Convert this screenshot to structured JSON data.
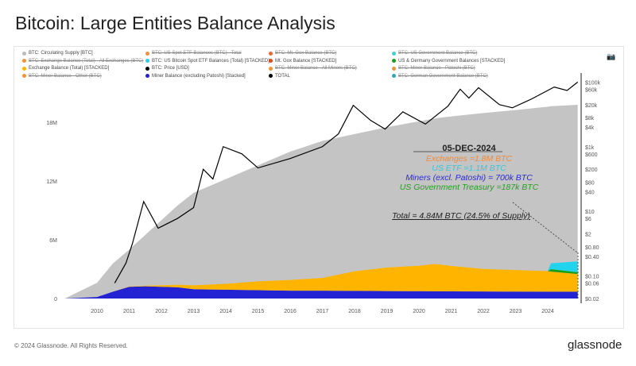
{
  "title": "Bitcoin: Large Entities Balance Analysis",
  "footer": "© 2024 Glassnode. All Rights Reserved.",
  "brand": "glassnode",
  "camera_icon": "camera-icon",
  "legend": [
    {
      "label": "BTC: Circulating Supply [BTC]",
      "color": "#bbbbbb",
      "off": false
    },
    {
      "label": "BTC: US Spot ETF Balances (BTC) - Total",
      "color": "#f0923a",
      "off": true
    },
    {
      "label": "BTC: Mt. Gox Balance (BTC)",
      "color": "#e8663a",
      "off": true
    },
    {
      "label": "BTC: US Government Balance (BTC)",
      "color": "#3ad2d2",
      "off": true
    },
    {
      "label": "BTC: Exchange Balance (Total) - All Exchanges (BTC)",
      "color": "#f0923a",
      "off": true
    },
    {
      "label": "BTC: US Bitcoin Spot ETF Balances (Total) [STACKED]",
      "color": "#22d3ee",
      "off": false
    },
    {
      "label": "Mt. Gox Balance [STACKED]",
      "color": "#e34a1a",
      "off": false
    },
    {
      "label": "US & Germany Government Balances [STACKED]",
      "color": "#16a016",
      "off": false
    },
    {
      "label": "Exchange Balance (Total) [STACKED]",
      "color": "#ffb400",
      "off": false
    },
    {
      "label": "BTC: Price [USD]",
      "color": "#000000",
      "off": false
    },
    {
      "label": "BTC: Miner Balance - All Miners (BTC)",
      "color": "#f0923a",
      "off": true
    },
    {
      "label": "BTC: Miner Balance - Patoshi (BTC)",
      "color": "#f0923a",
      "off": true
    },
    {
      "label": "BTC: Miner Balance - Other (BTC)",
      "color": "#f0923a",
      "off": true
    },
    {
      "label": "Miner Balance (excluding Patoshi) [Stacked]",
      "color": "#2020d0",
      "off": false
    },
    {
      "label": "TOTAL",
      "color": "#000000",
      "off": false
    },
    {
      "label": "BTC: German Government Balance (BTC)",
      "color": "#2aa8b8",
      "off": true
    }
  ],
  "annotation": {
    "date": "05-DEC-2024",
    "exchanges": "Exchanges =1.8M BTC",
    "etf": "US ETF =1.1M BTC",
    "miners": "Miners (excl. Patoshi) = 700k BTC",
    "gov": "US Government Treasury =187k BTC",
    "total": "Total =  4.84M BTC (24.5% of Supply)"
  },
  "chart_data": {
    "type": "area",
    "title": "Bitcoin: Large Entities Balance Analysis",
    "x_ticks": [
      "2010",
      "2011",
      "2012",
      "2013",
      "2014",
      "2015",
      "2016",
      "2017",
      "2018",
      "2019",
      "2020",
      "2021",
      "2022",
      "2023",
      "2024"
    ],
    "y_left_ticks": [
      "0",
      "6M",
      "12M",
      "18M"
    ],
    "y_left_range": [
      0,
      22000000
    ],
    "y_right_ticks": [
      "$0.02",
      "$0.06",
      "$0.10",
      "$0.40",
      "$0.80",
      "$2",
      "$6",
      "$10",
      "$40",
      "$80",
      "$200",
      "$600",
      "$1k",
      "$4k",
      "$8k",
      "$20k",
      "$60k",
      "$100k"
    ],
    "y_right_scale": "log",
    "x": [
      2009.0,
      2010.0,
      2010.5,
      2011.0,
      2011.5,
      2012.0,
      2012.5,
      2013.0,
      2014.0,
      2015.0,
      2016.0,
      2017.0,
      2018.0,
      2019.0,
      2020.0,
      2020.5,
      2021.0,
      2022.0,
      2023.0,
      2024.0,
      2024.1,
      2024.93
    ],
    "series": [
      {
        "name": "Circulating Supply",
        "color": "#c4c4c4",
        "values": [
          0,
          1600000,
          3600000,
          5000000,
          6500000,
          8000000,
          9500000,
          10800000,
          12200000,
          13600000,
          15000000,
          16100000,
          16800000,
          17500000,
          18100000,
          18400000,
          18600000,
          18950000,
          19250000,
          19600000,
          19650000,
          19790000
        ]
      },
      {
        "name": "Miner Balance (excl. Patoshi)",
        "color": "#2323d4",
        "values": [
          0,
          150000,
          700000,
          1200000,
          1250000,
          1200000,
          1150000,
          950000,
          900000,
          850000,
          800000,
          800000,
          780000,
          760000,
          750000,
          740000,
          730000,
          720000,
          710000,
          700000,
          700000,
          700000
        ]
      },
      {
        "name": "Exchange Balance",
        "color": "#ffb400",
        "values": [
          0,
          0,
          0,
          30000,
          60000,
          150000,
          250000,
          400000,
          600000,
          900000,
          1100000,
          1300000,
          2000000,
          2400000,
          2600000,
          2800000,
          2600000,
          2300000,
          2200000,
          2100000,
          2050000,
          1800000
        ]
      },
      {
        "name": "US & Germany Gov",
        "color": "#16a016",
        "values": [
          0,
          0,
          0,
          0,
          0,
          0,
          0,
          0,
          0,
          0,
          0,
          0,
          0,
          0,
          0,
          0,
          0,
          0,
          0,
          0,
          250000,
          187000
        ]
      },
      {
        "name": "US ETF",
        "color": "#22d3ee",
        "values": [
          0,
          0,
          0,
          0,
          0,
          0,
          0,
          0,
          0,
          0,
          0,
          0,
          0,
          0,
          0,
          0,
          0,
          0,
          0,
          0,
          600000,
          1100000
        ]
      }
    ],
    "price": {
      "x": [
        2010.55,
        2010.9,
        2011.1,
        2011.45,
        2011.9,
        2012.5,
        2013.0,
        2013.3,
        2013.6,
        2013.92,
        2014.5,
        2015.0,
        2016.0,
        2017.0,
        2017.5,
        2017.96,
        2018.5,
        2018.95,
        2019.5,
        2020.2,
        2020.9,
        2021.28,
        2021.55,
        2021.85,
        2022.5,
        2022.9,
        2023.5,
        2024.2,
        2024.6,
        2024.93
      ],
      "values": [
        0.06,
        0.25,
        1,
        20,
        3,
        6,
        13,
        200,
        100,
        1000,
        600,
        220,
        430,
        1000,
        2500,
        19000,
        6500,
        3500,
        12000,
        5000,
        18000,
        60000,
        32000,
        67000,
        20000,
        16000,
        30000,
        70000,
        55000,
        100000
      ]
    }
  }
}
